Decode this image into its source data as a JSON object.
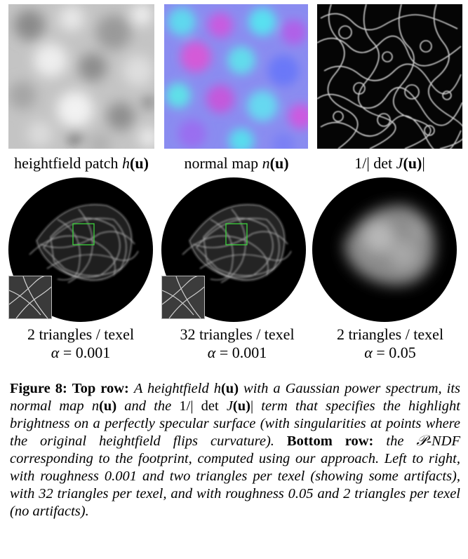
{
  "top_row": {
    "labels": {
      "heightfield": {
        "text": "heightfield patch ",
        "math": "h",
        "arg": "(u)"
      },
      "normal": {
        "text": "normal map ",
        "math": "n",
        "arg": "(u)"
      },
      "det": {
        "prefix": "1/| det ",
        "math": "J",
        "arg": "(u)",
        "suffix": "|"
      }
    }
  },
  "bottom_row": [
    {
      "triangles": "2 triangles / texel",
      "alpha_sym": "α",
      "alpha_val": " = 0.001"
    },
    {
      "triangles": "32 triangles / texel",
      "alpha_sym": "α",
      "alpha_val": " = 0.001"
    },
    {
      "triangles": "2 triangles / texel",
      "alpha_sym": "α",
      "alpha_val": " = 0.05"
    }
  ],
  "caption": {
    "figure_label": "Figure 8:",
    "top_row_label": "Top row:",
    "top_row_text_1": "A heightfield ",
    "h_sym": "h",
    "u_arg": "(u)",
    "top_row_text_2": " with a Gaussian power spectrum, its normal map ",
    "n_sym": "n",
    "top_row_text_3": " and the ",
    "det_prefix": "1/| det ",
    "J_sym": "J",
    "det_suffix": "|",
    "top_row_text_4": " term that specifies the highlight brightness on a perfectly specular surface (with singularities at points where the original heightfield flips curvature).",
    "bottom_row_label": "Bottom row:",
    "bottom_row_text_1": " the ",
    "p_ndf": "𝒫-NDF",
    "bottom_row_text_2": " corresponding to the footprint, computed using our approach. Left to right, with roughness 0.001 and two triangles per texel (showing some artifacts), with 32 triangles per texel, and with roughness 0.05 and 2 triangles per texel (no artifacts)."
  },
  "colors": {
    "highlight_box": "#3cd23c",
    "background": "#ffffff",
    "disk": "#000000"
  }
}
